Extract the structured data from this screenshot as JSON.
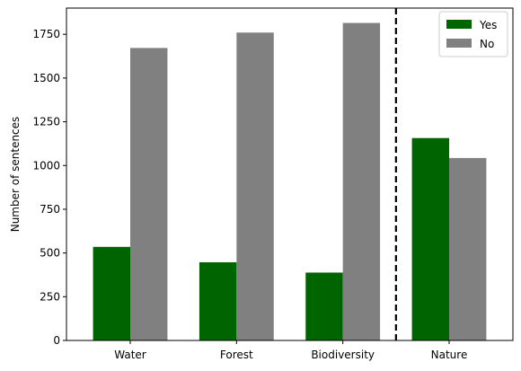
{
  "chart_data": {
    "type": "bar",
    "categories": [
      "Water",
      "Forest",
      "Biodiversity",
      "Nature"
    ],
    "series": [
      {
        "name": "Yes",
        "color": "#006400",
        "values": [
          535,
          447,
          388,
          1157
        ]
      },
      {
        "name": "No",
        "color": "#808080",
        "values": [
          1672,
          1760,
          1815,
          1043
        ]
      }
    ],
    "xlabel": "",
    "ylabel": "Number of sentences",
    "ylim": [
      0,
      1900
    ],
    "yticks": [
      0,
      250,
      500,
      750,
      1000,
      1250,
      1500,
      1750
    ],
    "ytick_labels": [
      "0",
      "250",
      "500",
      "750",
      "1000",
      "1250",
      "1500",
      "1750"
    ],
    "separator": {
      "position": "between Biodiversity and Nature",
      "style": "dashed",
      "color": "#000000"
    },
    "legend": {
      "placement": "top-right"
    },
    "grid": false
  }
}
